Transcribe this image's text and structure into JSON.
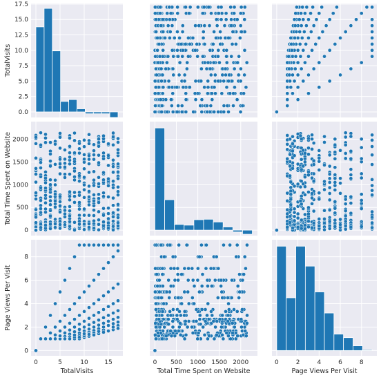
{
  "chart_data": {
    "type": "pairplot",
    "variables": [
      "TotalVisits",
      "Total Time Spent on Website",
      "Page Views Per Visit"
    ],
    "style": {
      "grid": true,
      "background": "#eaeaf2",
      "marker_color": "#1f77b4",
      "marker_edge": "#ffffff"
    },
    "axes": {
      "TotalVisits": {
        "lim": [
          -1,
          18
        ],
        "ticks": [
          "0",
          "5",
          "10",
          "15"
        ],
        "tick_values": [
          0,
          5,
          10,
          15
        ]
      },
      "Total Time Spent on Website": {
        "lim": [
          -120,
          2390
        ],
        "ticks": [
          "0",
          "500",
          "1000",
          "1500",
          "2000"
        ],
        "tick_values": [
          0,
          500,
          1000,
          1500,
          2000
        ]
      },
      "Page Views Per Visit": {
        "lim": [
          -0.45,
          9.45
        ],
        "ticks": [
          "0",
          "2",
          "4",
          "6",
          "8"
        ],
        "tick_values": [
          0,
          2,
          4,
          6,
          8
        ]
      }
    },
    "row_ylims": {
      "TotalVisits": [
        -0.9,
        17.6
      ],
      "Total Time Spent on Website": [
        -120,
        2390
      ],
      "Page Views Per Visit": [
        -0.45,
        9.45
      ]
    },
    "row_ticks": {
      "TotalVisits": {
        "labels": [
          "0.0",
          "2.5",
          "5.0",
          "7.5",
          "10.0",
          "12.5",
          "15.0",
          "17.5"
        ],
        "values": [
          0,
          2.5,
          5,
          7.5,
          10,
          12.5,
          15,
          17.5
        ]
      },
      "Total Time Spent on Website": {
        "labels": [
          "0",
          "500",
          "1000",
          "1500",
          "2000"
        ],
        "values": [
          0,
          500,
          1000,
          1500,
          2000
        ]
      },
      "Page Views Per Visit": {
        "labels": [
          "0",
          "2",
          "4",
          "6",
          "8"
        ],
        "values": [
          0,
          2,
          4,
          6,
          8
        ]
      }
    },
    "histograms": {
      "TotalVisits": {
        "bin_edges": [
          0,
          1.7,
          3.4,
          5.1,
          6.8,
          8.5,
          10.2,
          11.9,
          13.6,
          15.3,
          17
        ],
        "heights": [
          13.8,
          16.8,
          9.9,
          1.7,
          2.0,
          0.5,
          -0.3,
          -0.3,
          -0.3,
          -0.9
        ]
      },
      "Total Time Spent on Website": {
        "bin_edges": [
          0,
          227,
          454,
          681,
          908,
          1135,
          1362,
          1589,
          1816,
          2043,
          2270
        ],
        "heights": [
          2250,
          670,
          125,
          110,
          230,
          240,
          180,
          70,
          -40,
          -90
        ]
      },
      "Page Views Per Visit": {
        "bin_edges": [
          0,
          0.9,
          1.8,
          2.7,
          3.6,
          4.5,
          5.4,
          6.3,
          7.2,
          8.1,
          9
        ],
        "heights": [
          8.9,
          4.5,
          8.9,
          7.2,
          5.0,
          3.2,
          1.4,
          1.1,
          0.4,
          0.07
        ]
      }
    },
    "scatter_discrete_values": {
      "TotalVisits": [
        0,
        1,
        2,
        3,
        4,
        5,
        6,
        7,
        8,
        9,
        10,
        11,
        12,
        13,
        14,
        15,
        16,
        17
      ],
      "Page Views Per Visit": [
        1,
        1.25,
        1.33,
        1.5,
        1.67,
        2,
        2.25,
        2.33,
        2.5,
        2.67,
        3,
        3.33,
        3.5,
        4,
        4.5,
        5,
        5.5,
        6,
        6.5,
        7,
        8,
        9
      ]
    }
  }
}
